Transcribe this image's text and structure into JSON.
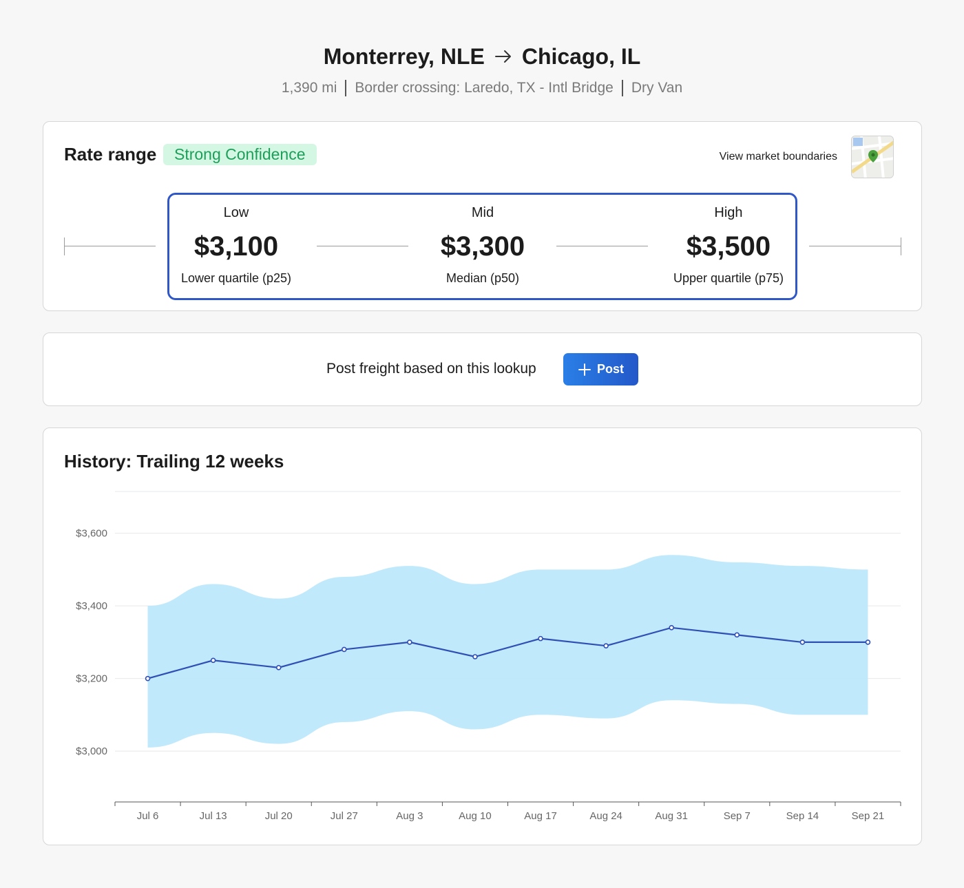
{
  "header": {
    "origin": "Monterrey, NLE",
    "destination": "Chicago, IL",
    "distance": "1,390 mi",
    "border_crossing": "Border crossing: Laredo, TX - Intl Bridge",
    "equipment": "Dry Van"
  },
  "rate_range": {
    "title": "Rate range",
    "confidence": "Strong Confidence",
    "market_link": "View market boundaries",
    "low": {
      "label": "Low",
      "value": "$3,100",
      "sub": "Lower quartile (p25)"
    },
    "mid": {
      "label": "Mid",
      "value": "$3,300",
      "sub": "Median (p50)"
    },
    "high": {
      "label": "High",
      "value": "$3,500",
      "sub": "Upper quartile (p75)"
    }
  },
  "post": {
    "text": "Post freight based on this lookup",
    "button_label": "Post"
  },
  "history": {
    "title": "History: Trailing 12 weeks"
  },
  "colors": {
    "accent": "#3057c6",
    "band": "#bde8fb",
    "line": "#2f4fb5",
    "badge_bg": "#d4f7e3",
    "badge_text": "#1e9e5a"
  },
  "chart_data": {
    "type": "area",
    "title": "History: Trailing 12 weeks",
    "categories": [
      "Jul 6",
      "Jul 13",
      "Jul 20",
      "Jul 27",
      "Aug 3",
      "Aug 10",
      "Aug 17",
      "Aug 24",
      "Aug 31",
      "Sep 7",
      "Sep 14",
      "Sep 21"
    ],
    "series": [
      {
        "values": [
          3200,
          3250,
          3230,
          3280,
          3300,
          3260,
          3310,
          3290,
          3340,
          3320,
          3300,
          3300
        ]
      }
    ],
    "band": {
      "upper": [
        3400,
        3460,
        3420,
        3480,
        3510,
        3460,
        3500,
        3500,
        3540,
        3520,
        3510,
        3500
      ],
      "lower": [
        3010,
        3050,
        3020,
        3080,
        3110,
        3060,
        3100,
        3090,
        3140,
        3130,
        3100,
        3100
      ]
    },
    "y_ticks": [
      3000,
      3200,
      3400,
      3600
    ],
    "y_tick_labels": [
      "$3,000",
      "$3,200",
      "$3,400",
      "$3,600"
    ],
    "ylim": [
      2860,
      3715
    ],
    "grid": true
  }
}
